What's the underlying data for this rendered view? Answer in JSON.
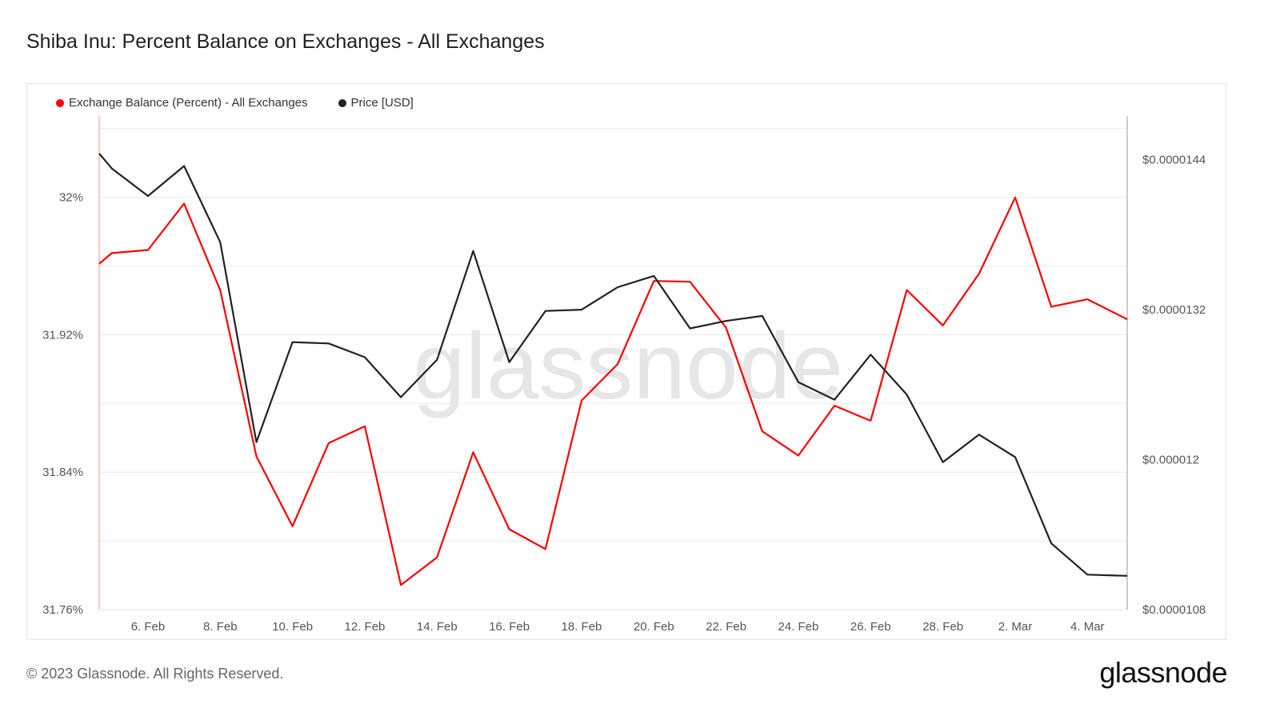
{
  "title": "Shiba Inu: Percent Balance on Exchanges - All Exchanges",
  "footer": {
    "copyright": "© 2023 Glassnode. All Rights Reserved.",
    "logo": "glassnode"
  },
  "watermark": "glassnode",
  "legend": [
    {
      "label": "Exchange Balance (Percent) - All Exchanges",
      "color": "#ff0000"
    },
    {
      "label": "Price [USD]",
      "color": "#222222"
    }
  ],
  "chart_data": {
    "type": "line",
    "title": "Shiba Inu: Percent Balance on Exchanges - All Exchanges",
    "x": [
      "5. Feb",
      "5. Feb",
      "6. Feb",
      "7. Feb",
      "8. Feb",
      "9. Feb",
      "10. Feb",
      "11. Feb",
      "12. Feb",
      "13. Feb",
      "14. Feb",
      "15. Feb",
      "16. Feb",
      "17. Feb",
      "18. Feb",
      "19. Feb",
      "20. Feb",
      "21. Feb",
      "22. Feb",
      "23. Feb",
      "24. Feb",
      "25. Feb",
      "26. Feb",
      "27. Feb",
      "28. Feb",
      "1. Mar",
      "2. Mar",
      "3. Mar",
      "4. Mar",
      "5. Mar"
    ],
    "x_ticks": [
      "6. Feb",
      "8. Feb",
      "10. Feb",
      "12. Feb",
      "14. Feb",
      "16. Feb",
      "18. Feb",
      "20. Feb",
      "22. Feb",
      "24. Feb",
      "26. Feb",
      "28. Feb",
      "2. Mar",
      "4. Mar"
    ],
    "x_range_days": [
      -0.35,
      28.1
    ],
    "series": [
      {
        "name": "Exchange Balance (Percent) - All Exchanges",
        "axis": "left",
        "color": "#ff0000",
        "points": [
          [
            -0.35,
            31.9613
          ],
          [
            0,
            31.9675
          ],
          [
            1,
            31.9693
          ],
          [
            2,
            31.9963
          ],
          [
            3,
            31.9459
          ],
          [
            4,
            31.8492
          ],
          [
            5,
            31.8085
          ],
          [
            6,
            31.8569
          ],
          [
            7,
            31.8667
          ],
          [
            8,
            31.7743
          ],
          [
            9,
            31.7904
          ],
          [
            10,
            31.8516
          ],
          [
            11,
            31.8068
          ],
          [
            12,
            31.7952
          ],
          [
            13,
            31.8817
          ],
          [
            14,
            31.9029
          ],
          [
            15,
            31.9513
          ],
          [
            16,
            31.9508
          ],
          [
            17,
            31.9241
          ],
          [
            18,
            31.8638
          ],
          [
            19,
            31.8497
          ],
          [
            20,
            31.8787
          ],
          [
            21,
            31.8699
          ],
          [
            22,
            31.946
          ],
          [
            23,
            31.9254
          ],
          [
            24,
            31.9555
          ],
          [
            25,
            31.9999
          ],
          [
            26,
            31.9363
          ],
          [
            27,
            31.9406
          ],
          [
            28.1,
            31.929
          ]
        ]
      },
      {
        "name": "Price [USD]",
        "axis": "right",
        "color": "#222222",
        "points": [
          [
            -0.35,
            1.445e-05
          ],
          [
            0,
            1.433e-05
          ],
          [
            1,
            1.411e-05
          ],
          [
            2,
            1.435e-05
          ],
          [
            3,
            1.374e-05
          ],
          [
            4,
            1.214e-05
          ],
          [
            5,
            1.294e-05
          ],
          [
            6,
            1.293e-05
          ],
          [
            7,
            1.282e-05
          ],
          [
            8,
            1.25e-05
          ],
          [
            9,
            1.28e-05
          ],
          [
            10,
            1.367e-05
          ],
          [
            11,
            1.278e-05
          ],
          [
            12,
            1.319e-05
          ],
          [
            13,
            1.32e-05
          ],
          [
            14,
            1.338e-05
          ],
          [
            15,
            1.347e-05
          ],
          [
            16,
            1.305e-05
          ],
          [
            17,
            1.311e-05
          ],
          [
            18,
            1.315e-05
          ],
          [
            19,
            1.262e-05
          ],
          [
            20,
            1.248e-05
          ],
          [
            21,
            1.284e-05
          ],
          [
            22,
            1.252e-05
          ],
          [
            23,
            1.198e-05
          ],
          [
            24,
            1.22e-05
          ],
          [
            25,
            1.202e-05
          ],
          [
            26,
            1.133e-05
          ],
          [
            27,
            1.108e-05
          ],
          [
            28.1,
            1.107e-05
          ]
        ]
      }
    ],
    "y_left": {
      "ticks": [
        "32%",
        "31.92%",
        "31.84%",
        "31.76%"
      ],
      "tick_values": [
        32,
        31.92,
        31.84,
        31.76
      ],
      "range": [
        31.76,
        32.0473
      ]
    },
    "y_right": {
      "ticks": [
        "$0.0000144",
        "$0.0000132",
        "$0.000012",
        "$0.0000108"
      ],
      "tick_values": [
        1.44e-05,
        1.32e-05,
        1.2e-05,
        1.08e-05
      ],
      "range": [
        1.08e-05,
        1.475e-05
      ]
    },
    "grid": true,
    "legend_position": "top-left"
  }
}
